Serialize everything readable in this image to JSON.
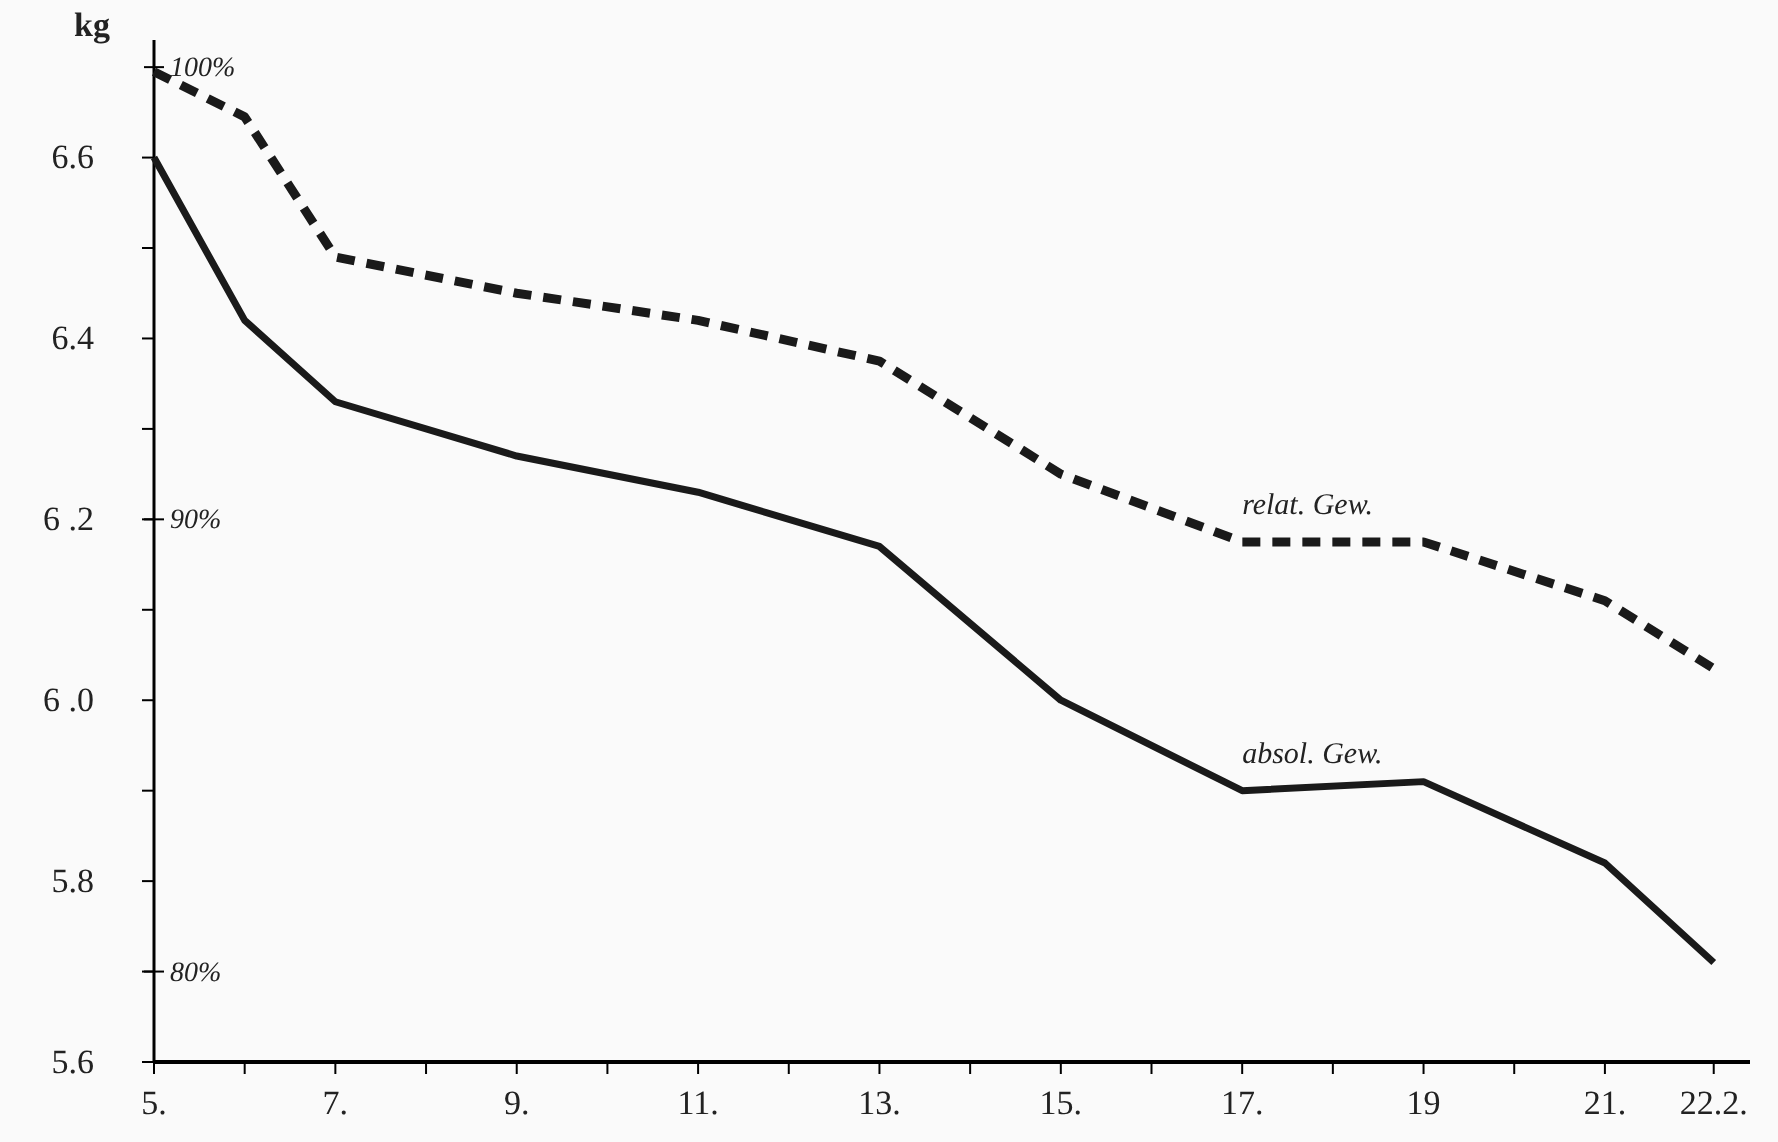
{
  "chart_data": {
    "type": "line",
    "ylabel": "kg",
    "x": [
      5,
      6,
      7,
      9,
      11,
      13,
      15,
      17,
      19,
      21,
      22.2
    ],
    "xlim": [
      5,
      22.6
    ],
    "xticks": [
      {
        "value": 5,
        "label": "5."
      },
      {
        "value": 6,
        "label": null
      },
      {
        "value": 7,
        "label": "7."
      },
      {
        "value": 8,
        "label": null
      },
      {
        "value": 9,
        "label": "9."
      },
      {
        "value": 10,
        "label": null
      },
      {
        "value": 11,
        "label": "11."
      },
      {
        "value": 12,
        "label": null
      },
      {
        "value": 13,
        "label": "13."
      },
      {
        "value": 14,
        "label": null
      },
      {
        "value": 15,
        "label": "15."
      },
      {
        "value": 16,
        "label": null
      },
      {
        "value": 17,
        "label": "17."
      },
      {
        "value": 18,
        "label": null
      },
      {
        "value": 19,
        "label": "19"
      },
      {
        "value": 20,
        "label": null
      },
      {
        "value": 21,
        "label": "21."
      },
      {
        "value": 22.2,
        "label": "22.2."
      }
    ],
    "ylim": [
      5.6,
      6.73
    ],
    "yticks": [
      5.6,
      {
        "value": 5.7,
        "label": null
      },
      5.8,
      {
        "value": 5.9,
        "label": null
      },
      {
        "value": 6.0,
        "label": "6 .0"
      },
      {
        "value": 6.1,
        "label": null
      },
      {
        "value": 6.2,
        "label": "6 .2"
      },
      {
        "value": 6.3,
        "label": null
      },
      6.4,
      {
        "value": 6.5,
        "label": null
      },
      6.6
    ],
    "y2lim": [
      78,
      100.6
    ],
    "y2ticks": [
      {
        "value": 80,
        "label": "80%"
      },
      {
        "value": 90,
        "label": "90%"
      },
      {
        "value": 100,
        "label": "100%"
      }
    ],
    "grid": false,
    "series": [
      {
        "name": "relat. Gew.",
        "color": "#1a1a1a",
        "axis": "y2",
        "line_style": "dashed",
        "values": [
          99.9,
          98.9,
          95.8,
          95.0,
          94.4,
          93.5,
          91.0,
          89.5,
          89.5,
          88.2,
          86.7
        ]
      },
      {
        "name": "absol. Gew.",
        "color": "#1a1a1a",
        "line_style": "solid",
        "values": [
          6.6,
          6.42,
          6.33,
          6.27,
          6.23,
          6.17,
          6.0,
          5.9,
          5.91,
          5.82,
          5.71
        ]
      }
    ]
  }
}
